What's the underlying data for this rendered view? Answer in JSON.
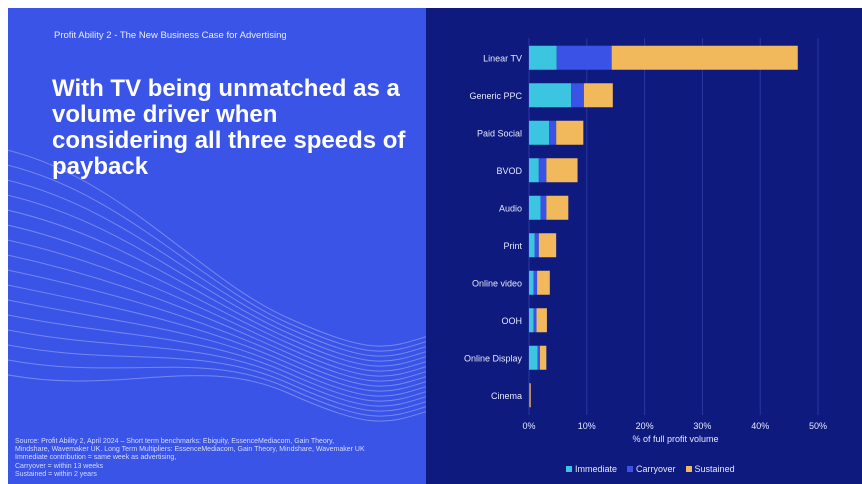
{
  "left": {
    "kicker": "Profit Ability 2 - The New Business Case for Advertising",
    "headline": "With TV being unmatched as a volume driver when considering all three speeds of payback",
    "source_lines": [
      "Source: Profit Ability 2, April 2024 – Short term benchmarks: Ebiquity, EssenceMediacom, Gain Theory,",
      "Mindshare, Wavemaker UK. Long Term Multipliers: EssenceMediacom, Gain Theory, Mindshare, Wavemaker UK",
      "Immediate contribution = same week as advertising,",
      "Carryover = within 13 weeks",
      "Sustained = within 2 years"
    ]
  },
  "colors": {
    "left_background": "#3a54e8",
    "right_background": "#0f1a7f",
    "immediate": "#3cc5e0",
    "carryover": "#3a52e6",
    "sustained": "#f2b85c"
  },
  "chart_data": {
    "type": "bar",
    "orientation": "horizontal",
    "stacked": true,
    "categories": [
      "Linear TV",
      "Generic PPC",
      "Paid Social",
      "BVOD",
      "Audio",
      "Print",
      "Online video",
      "OOH",
      "Online Display",
      "Cinema"
    ],
    "series": [
      {
        "name": "Immediate",
        "values": [
          4.8,
          7.3,
          3.5,
          1.7,
          2.0,
          1.0,
          0.8,
          0.8,
          1.5,
          0.1
        ]
      },
      {
        "name": "Carryover",
        "values": [
          9.5,
          2.2,
          1.2,
          1.3,
          1.0,
          0.7,
          0.6,
          0.5,
          0.4,
          0.05
        ]
      },
      {
        "name": "Sustained",
        "values": [
          32.2,
          5.0,
          4.7,
          5.4,
          3.8,
          3.0,
          2.2,
          1.8,
          1.1,
          0.15
        ]
      }
    ],
    "xlabel": "% of full profit volume",
    "xticks": [
      "0%",
      "10%",
      "20%",
      "30%",
      "40%",
      "50%"
    ],
    "xlim": [
      0,
      50
    ],
    "grid": true,
    "legend_position": "bottom"
  }
}
